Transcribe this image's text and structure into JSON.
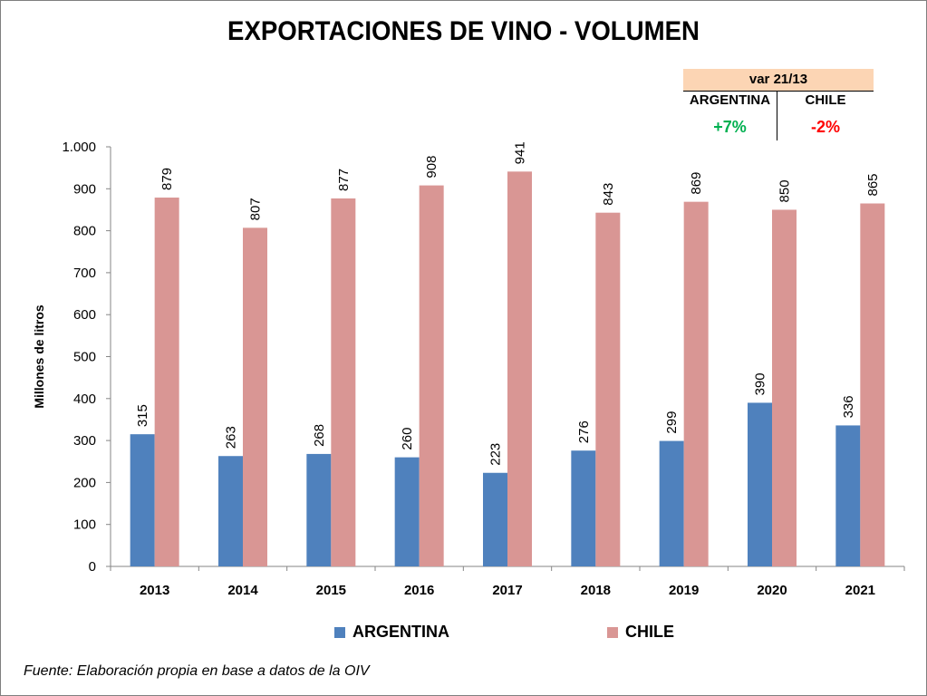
{
  "title": "EXPORTACIONES DE VINO - VOLUMEN",
  "variation_box": {
    "header": "var 21/13",
    "entries": [
      {
        "country": "ARGENTINA",
        "value": "+7%",
        "color": "#00b050"
      },
      {
        "country": "CHILE",
        "value": "-2%",
        "color": "#ff0000"
      }
    ]
  },
  "legend": [
    {
      "label": "ARGENTINA",
      "color": "#4f81bd"
    },
    {
      "label": "CHILE",
      "color": "#d99694"
    }
  ],
  "footnote": "Fuente: Elaboración propia en base a datos de la OIV",
  "chart_data": {
    "type": "bar",
    "title": "EXPORTACIONES DE VINO - VOLUMEN",
    "xlabel": "",
    "ylabel": "Millones de litros",
    "ylim": [
      0,
      1000
    ],
    "yticks": [
      0,
      100,
      200,
      300,
      400,
      500,
      600,
      700,
      800,
      900,
      1000
    ],
    "ytick_labels": [
      "0",
      "100",
      "200",
      "300",
      "400",
      "500",
      "600",
      "700",
      "800",
      "900",
      "1.000"
    ],
    "categories": [
      "2013",
      "2014",
      "2015",
      "2016",
      "2017",
      "2018",
      "2019",
      "2020",
      "2021"
    ],
    "series": [
      {
        "name": "ARGENTINA",
        "color": "#4f81bd",
        "values": [
          315,
          263,
          268,
          260,
          223,
          276,
          299,
          390,
          336
        ]
      },
      {
        "name": "CHILE",
        "color": "#d99694",
        "values": [
          879,
          807,
          877,
          908,
          941,
          843,
          869,
          850,
          865
        ]
      }
    ],
    "grid": false,
    "legend_position": "bottom",
    "data_labels": true
  }
}
